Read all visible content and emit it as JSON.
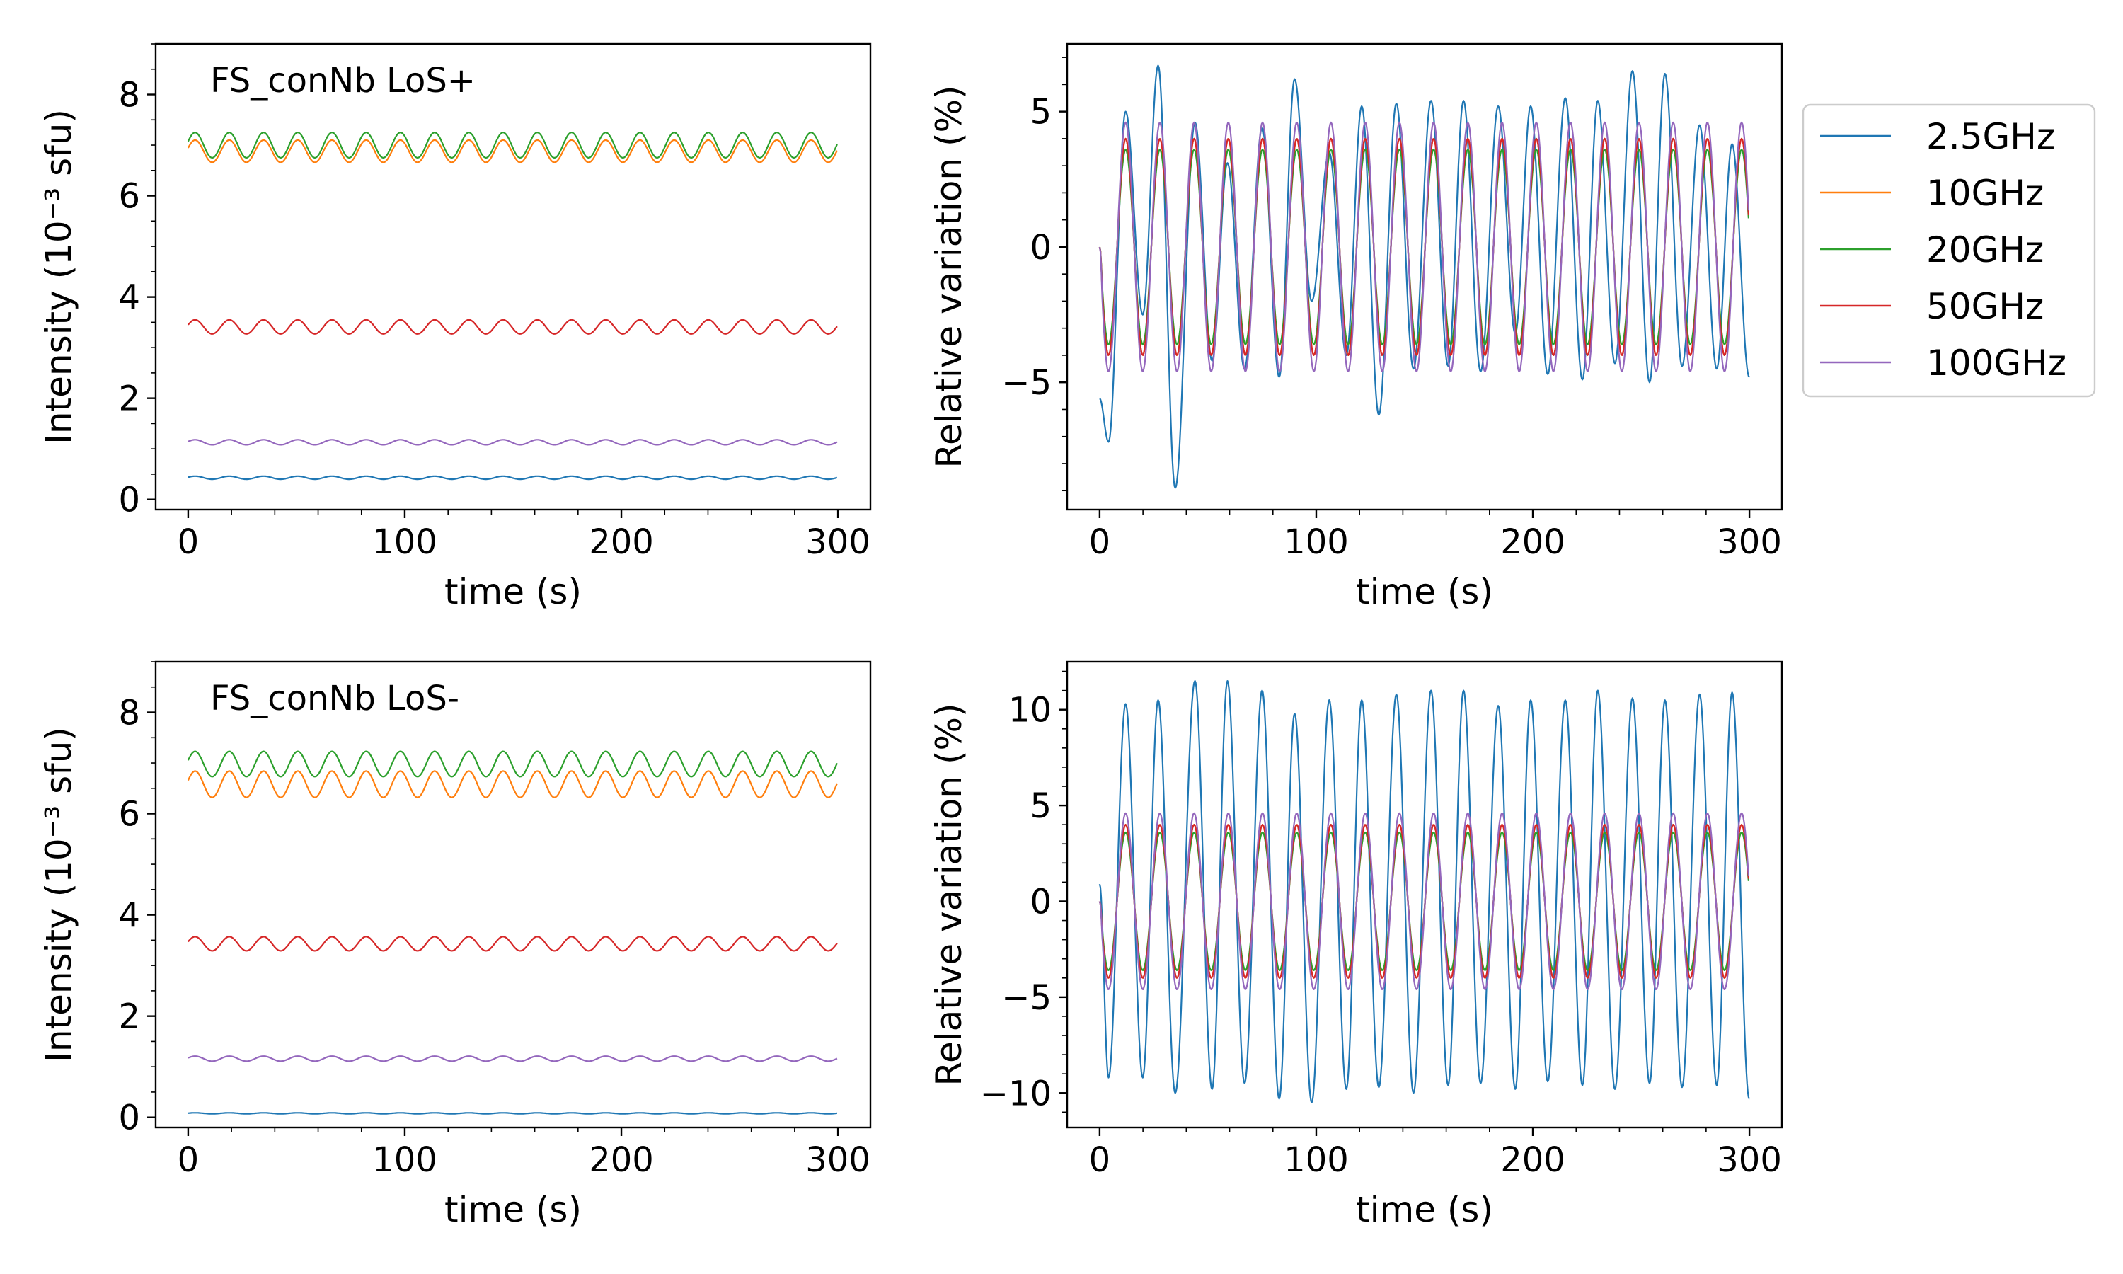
{
  "colors": {
    "2.5GHz": "#1f77b4",
    "10GHz": "#ff7f0e",
    "20GHz": "#2ca02c",
    "50GHz": "#d62728",
    "100GHz": "#9467bd"
  },
  "legend": {
    "placement": "right of top-right panel",
    "entries": [
      "2.5GHz",
      "10GHz",
      "20GHz",
      "50GHz",
      "100GHz"
    ]
  },
  "chart_data": [
    {
      "id": "top-left",
      "type": "line",
      "annotation": "FS_conNb LoS+",
      "xlabel": "time (s)",
      "ylabel": "Intensity (10⁻³ sfu)",
      "xlim": [
        -15,
        315
      ],
      "ylim": [
        -0.2,
        9.0
      ],
      "xticks": [
        0,
        100,
        200,
        300
      ],
      "yticks": [
        0,
        2,
        4,
        6,
        8
      ],
      "grid": false,
      "series": [
        {
          "name": "2.5GHz",
          "mean": 0.43,
          "amplitude": 0.03,
          "period_s": 15.8,
          "phase_s": 0.0
        },
        {
          "name": "10GHz",
          "mean": 6.88,
          "amplitude": 0.22,
          "period_s": 15.8,
          "phase_s": 0.0
        },
        {
          "name": "20GHz",
          "mean": 7.0,
          "amplitude": 0.25,
          "period_s": 15.8,
          "phase_s": 0.0
        },
        {
          "name": "50GHz",
          "mean": 3.41,
          "amplitude": 0.14,
          "period_s": 15.8,
          "phase_s": 0.0
        },
        {
          "name": "100GHz",
          "mean": 1.13,
          "amplitude": 0.05,
          "period_s": 15.8,
          "phase_s": 0.0
        }
      ]
    },
    {
      "id": "top-right",
      "type": "line",
      "annotation": "",
      "xlabel": "time (s)",
      "ylabel": "Relative variation (%)",
      "xlim": [
        -15,
        315
      ],
      "ylim": [
        -9.7,
        7.5
      ],
      "xticks": [
        0,
        100,
        200,
        300
      ],
      "yticks": [
        -5,
        0,
        5
      ],
      "grid": false,
      "series": [
        {
          "name": "2.5GHz",
          "peak_times_s": [
            12,
            27,
            44,
            59,
            75,
            90,
            106,
            121,
            137,
            153,
            168,
            184,
            199,
            215,
            230,
            246,
            261,
            277,
            292
          ],
          "peak_values": [
            5.0,
            6.7,
            4.6,
            3.1,
            4.4,
            6.2,
            3.5,
            5.2,
            5.3,
            5.4,
            5.4,
            5.2,
            5.2,
            5.5,
            5.4,
            6.5,
            6.4,
            4.5,
            3.8
          ],
          "trough_values": [
            -7.2,
            -2.5,
            -8.9,
            -4.2,
            -4.5,
            -4.8,
            -2.0,
            -4.0,
            -6.2,
            -4.5,
            -4.4,
            -4.6,
            -3.2,
            -4.7,
            -4.9,
            -4.3,
            -5.0,
            -4.4,
            -4.5,
            -4.8
          ],
          "start_value": -5.6,
          "end_value": -4.8
        },
        {
          "name": "10GHz",
          "amplitude": 4.0,
          "period_s": 15.8
        },
        {
          "name": "20GHz",
          "amplitude": 3.6,
          "period_s": 15.8
        },
        {
          "name": "50GHz",
          "amplitude": 4.0,
          "period_s": 15.8
        },
        {
          "name": "100GHz",
          "amplitude": 4.6,
          "period_s": 15.8
        }
      ]
    },
    {
      "id": "bottom-left",
      "type": "line",
      "annotation": "FS_conNb LoS-",
      "xlabel": "time (s)",
      "ylabel": "Intensity (10⁻³ sfu)",
      "xlim": [
        -15,
        315
      ],
      "ylim": [
        -0.2,
        9.0
      ],
      "xticks": [
        0,
        100,
        200,
        300
      ],
      "yticks": [
        0,
        2,
        4,
        6,
        8
      ],
      "grid": false,
      "series": [
        {
          "name": "2.5GHz",
          "mean": 0.08,
          "amplitude": 0.01,
          "period_s": 15.8,
          "phase_s": 0.0
        },
        {
          "name": "10GHz",
          "mean": 6.58,
          "amplitude": 0.26,
          "period_s": 15.8,
          "phase_s": 0.0
        },
        {
          "name": "20GHz",
          "mean": 6.98,
          "amplitude": 0.25,
          "period_s": 15.8,
          "phase_s": 0.0
        },
        {
          "name": "50GHz",
          "mean": 3.43,
          "amplitude": 0.14,
          "period_s": 15.8,
          "phase_s": 0.0
        },
        {
          "name": "100GHz",
          "mean": 1.16,
          "amplitude": 0.05,
          "period_s": 15.8,
          "phase_s": 0.0
        }
      ]
    },
    {
      "id": "bottom-right",
      "type": "line",
      "annotation": "",
      "xlabel": "time (s)",
      "ylabel": "Relative variation (%)",
      "xlim": [
        -15,
        315
      ],
      "ylim": [
        -11.8,
        12.5
      ],
      "xticks": [
        0,
        100,
        200,
        300
      ],
      "yticks": [
        -10,
        -5,
        0,
        5,
        10
      ],
      "grid": false,
      "series": [
        {
          "name": "2.5GHz",
          "peak_times_s": [
            12,
            27,
            44,
            59,
            75,
            90,
            106,
            121,
            137,
            153,
            168,
            184,
            199,
            215,
            230,
            246,
            261,
            277,
            292
          ],
          "peak_values": [
            10.3,
            10.5,
            11.5,
            11.5,
            11.0,
            9.8,
            10.5,
            10.5,
            10.8,
            11.0,
            11.0,
            10.2,
            10.5,
            10.5,
            11.0,
            10.6,
            10.5,
            10.8,
            10.9
          ],
          "trough_values": [
            -9.2,
            -9.2,
            -10.0,
            -9.8,
            -9.5,
            -10.3,
            -10.5,
            -9.8,
            -9.7,
            -10.0,
            -9.6,
            -9.5,
            -9.8,
            -9.4,
            -9.6,
            -9.8,
            -9.5,
            -9.7,
            -9.6,
            -10.3
          ],
          "start_value": 0.9,
          "end_value": -10.3
        },
        {
          "name": "10GHz",
          "amplitude": 4.0,
          "period_s": 15.8
        },
        {
          "name": "20GHz",
          "amplitude": 3.6,
          "period_s": 15.8
        },
        {
          "name": "50GHz",
          "amplitude": 4.0,
          "period_s": 15.8
        },
        {
          "name": "100GHz",
          "amplitude": 4.6,
          "period_s": 15.8
        }
      ]
    }
  ]
}
